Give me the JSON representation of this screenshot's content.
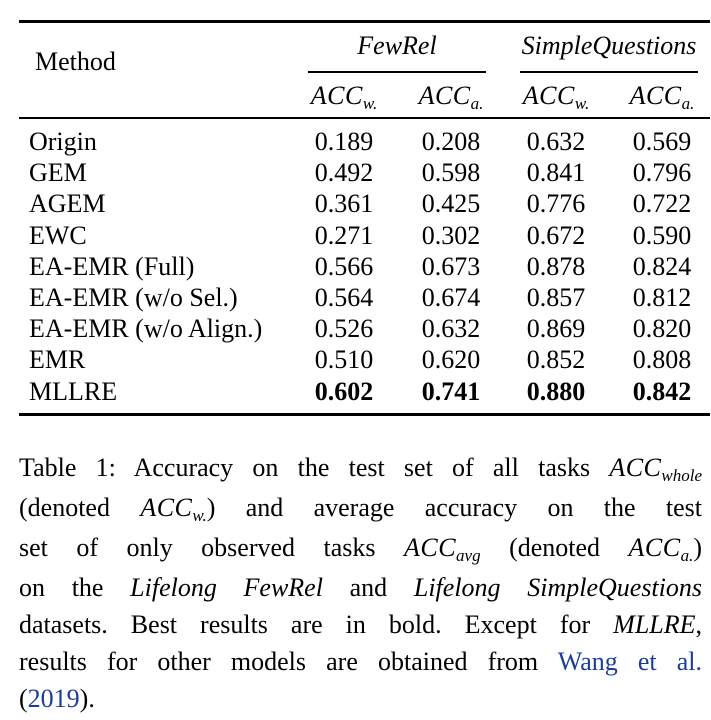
{
  "table": {
    "method_header": "Method",
    "groups": [
      {
        "label": "FewRel",
        "cols": [
          {
            "base": "ACC",
            "sub": "w."
          },
          {
            "base": "ACC",
            "sub": "a."
          }
        ]
      },
      {
        "label": "SimpleQuestions",
        "cols": [
          {
            "base": "ACC",
            "sub": "w."
          },
          {
            "base": "ACC",
            "sub": "a."
          }
        ]
      }
    ],
    "rows": [
      {
        "method": "Origin",
        "v": [
          "0.189",
          "0.208",
          "0.632",
          "0.569"
        ]
      },
      {
        "method": "GEM",
        "v": [
          "0.492",
          "0.598",
          "0.841",
          "0.796"
        ]
      },
      {
        "method": "AGEM",
        "v": [
          "0.361",
          "0.425",
          "0.776",
          "0.722"
        ]
      },
      {
        "method": "EWC",
        "v": [
          "0.271",
          "0.302",
          "0.672",
          "0.590"
        ]
      },
      {
        "method": "EA-EMR (Full)",
        "v": [
          "0.566",
          "0.673",
          "0.878",
          "0.824"
        ]
      },
      {
        "method": "EA-EMR (w/o Sel.)",
        "v": [
          "0.564",
          "0.674",
          "0.857",
          "0.812"
        ]
      },
      {
        "method": "EA-EMR (w/o Align.)",
        "v": [
          "0.526",
          "0.632",
          "0.869",
          "0.820"
        ]
      },
      {
        "method": "EMR",
        "v": [
          "0.510",
          "0.620",
          "0.852",
          "0.808"
        ]
      },
      {
        "method": "MLLRE",
        "v": [
          "0.602",
          "0.741",
          "0.880",
          "0.842"
        ],
        "bold": true
      }
    ]
  },
  "caption": {
    "l1_a": "Table 1: Accuracy on the test set of all tasks ",
    "l1_m": "ACC",
    "l1_s": "whole",
    "l2_a": "(denoted ",
    "l2_m": "ACC",
    "l2_s": "w.",
    "l2_b": ") and average accuracy on the test",
    "l3_a": "set of only observed tasks ",
    "l3_m": "ACC",
    "l3_s": "avg",
    "l3_b": " (denoted ",
    "l3_m2": "ACC",
    "l3_s2": "a.",
    "l3_c": ")",
    "l4_a": "on the ",
    "l4_i1": "Lifelong FewRel",
    "l4_b": " and ",
    "l4_i2": "Lifelong SimpleQuestions",
    "l5_a": "datasets.  Best results are in bold.  Except for ",
    "l5_i": "MLLRE",
    "l5_b": ",",
    "l6_a": "results for other models are obtained from ",
    "l6_cite": "Wang et al.",
    "l7_open": "(",
    "l7_year": "2019",
    "l7_close": ")."
  }
}
